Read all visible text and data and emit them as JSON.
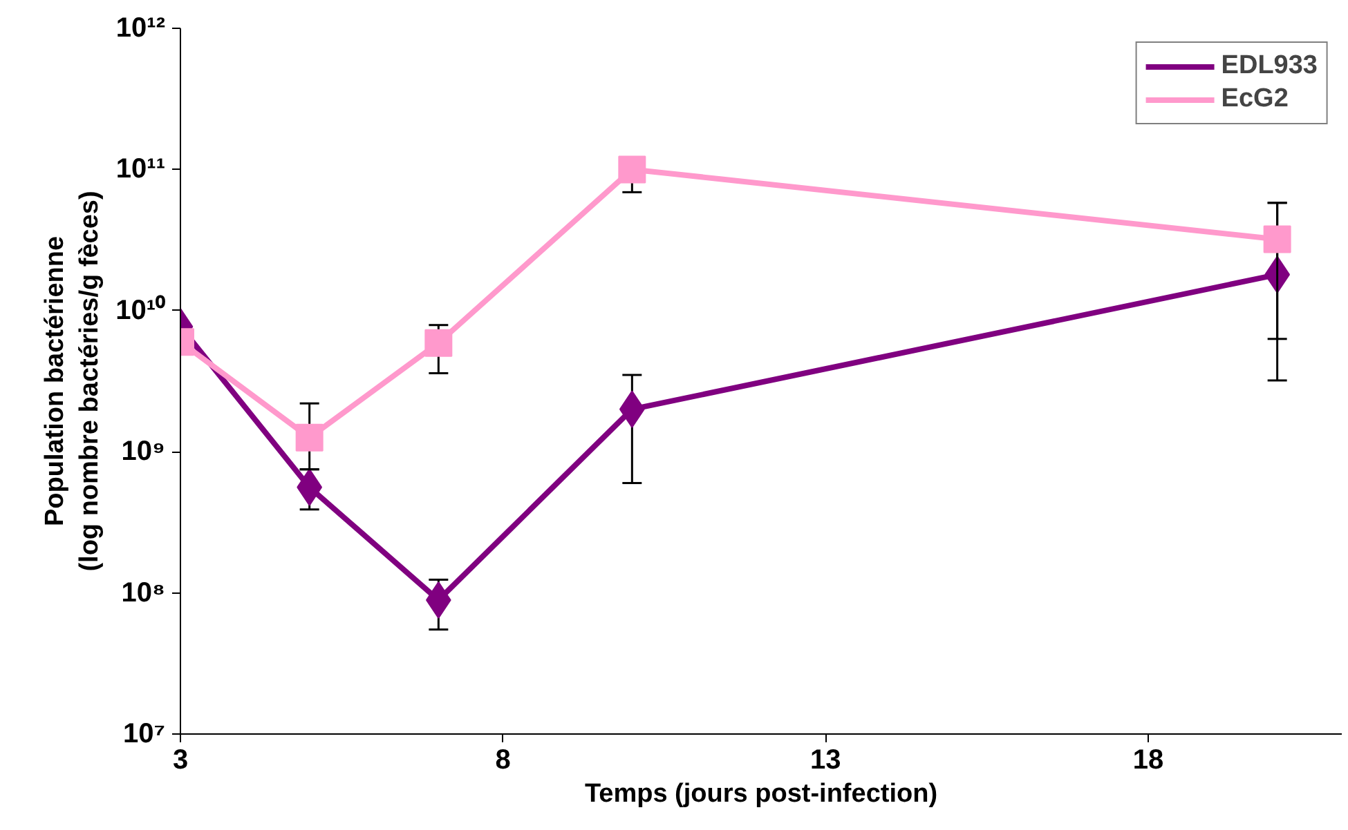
{
  "chart_data": {
    "type": "line",
    "xlabel": "Temps (jours post-infection)",
    "ylabel": "Population bactérienne\n(log nombre bactéries/g fèces)",
    "x": [
      3,
      5,
      7,
      10,
      20
    ],
    "xlim": [
      3,
      21
    ],
    "xticks": [
      3,
      8,
      13,
      18
    ],
    "ylim": [
      10000000.0,
      1000000000000.0
    ],
    "yticks": [
      {
        "value": 10000000.0,
        "label": "10⁷"
      },
      {
        "value": 100000000.0,
        "label": "10⁸"
      },
      {
        "value": 1000000000.0,
        "label": "10⁹"
      },
      {
        "value": 10000000000.0,
        "label": "10¹⁰"
      },
      {
        "value": 100000000000.0,
        "label": "10¹¹"
      },
      {
        "value": 1000000000000.0,
        "label": "10¹²"
      }
    ],
    "log": "y",
    "grid": false,
    "legend": "top right",
    "line_style": "solid",
    "series": [
      {
        "name": "EDL933",
        "color": "#800080",
        "marker": "diamond",
        "values": [
          7700000000.0,
          560000000.0,
          89000000.0,
          2000000000.0,
          18000000000.0
        ],
        "errors": [
          null,
          [
            390000000.0,
            750000000.0
          ],
          [
            55000000.0,
            124000000.0
          ],
          [
            600000000.0,
            3500000000.0
          ],
          [
            3200000000.0,
            58000000000.0
          ]
        ]
      },
      {
        "name": "EcG2",
        "color": "#ff99cc",
        "marker": "square",
        "values": [
          6000000000.0,
          1260000000.0,
          5900000000.0,
          100000000000.0,
          32000000000.0
        ],
        "errors": [
          null,
          [
            750000000.0,
            2200000000.0
          ],
          [
            3600000000.0,
            7900000000.0
          ],
          [
            69000000000.0,
            100000000000.0
          ],
          [
            6300000000.0,
            58000000000.0
          ]
        ]
      }
    ]
  }
}
